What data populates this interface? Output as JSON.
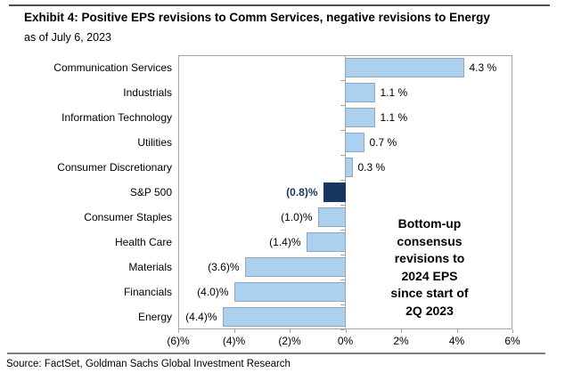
{
  "header": {
    "title": "Exhibit 4: Positive EPS revisions to Comm Services, negative revisions to Energy",
    "subtitle": "as of July 6, 2023"
  },
  "footer": {
    "source": "Source: FactSet, Goldman Sachs Global Investment Research"
  },
  "colors": {
    "bar_fill": "#ABD1EE",
    "bar_border": "#8FA8BF",
    "highlight_fill": "#17375E",
    "highlight_border": "#17375E",
    "highlight_text": "#17375E",
    "axis": "#A6A6A6",
    "text": "#000000"
  },
  "chart_data": {
    "type": "bar",
    "orientation": "horizontal",
    "title": "Exhibit 4: Positive EPS revisions to Comm Services, negative revisions to Energy",
    "subtitle": "as of July 6, 2023",
    "units": "%",
    "categories": [
      "Communication Services",
      "Industrials",
      "Information Technology",
      "Utilities",
      "Consumer Discretionary",
      "S&P 500",
      "Consumer Staples",
      "Health Care",
      "Materials",
      "Financials",
      "Energy"
    ],
    "values": [
      4.3,
      1.1,
      1.1,
      0.7,
      0.3,
      -0.8,
      -1.0,
      -1.4,
      -3.6,
      -4.0,
      -4.4
    ],
    "value_labels": [
      "4.3 %",
      "1.1 %",
      "1.1 %",
      "0.7 %",
      "0.3 %",
      "(0.8)%",
      "(1.0)%",
      "(1.4)%",
      "(3.6)%",
      "(4.0)%",
      "(4.4)%"
    ],
    "highlight_index": 5,
    "xlim": [
      -6,
      6
    ],
    "x_ticks": [
      -6,
      -4,
      -2,
      0,
      2,
      4,
      6
    ],
    "x_tick_labels": [
      "(6)%",
      "(4)%",
      "(2)%",
      "0%",
      "2%",
      "4%",
      "6%"
    ],
    "grid": false,
    "legend": false,
    "annotation": "Bottom-up\nconsensus\nrevisions to\n2024 EPS\nsince start of\n2Q 2023"
  }
}
